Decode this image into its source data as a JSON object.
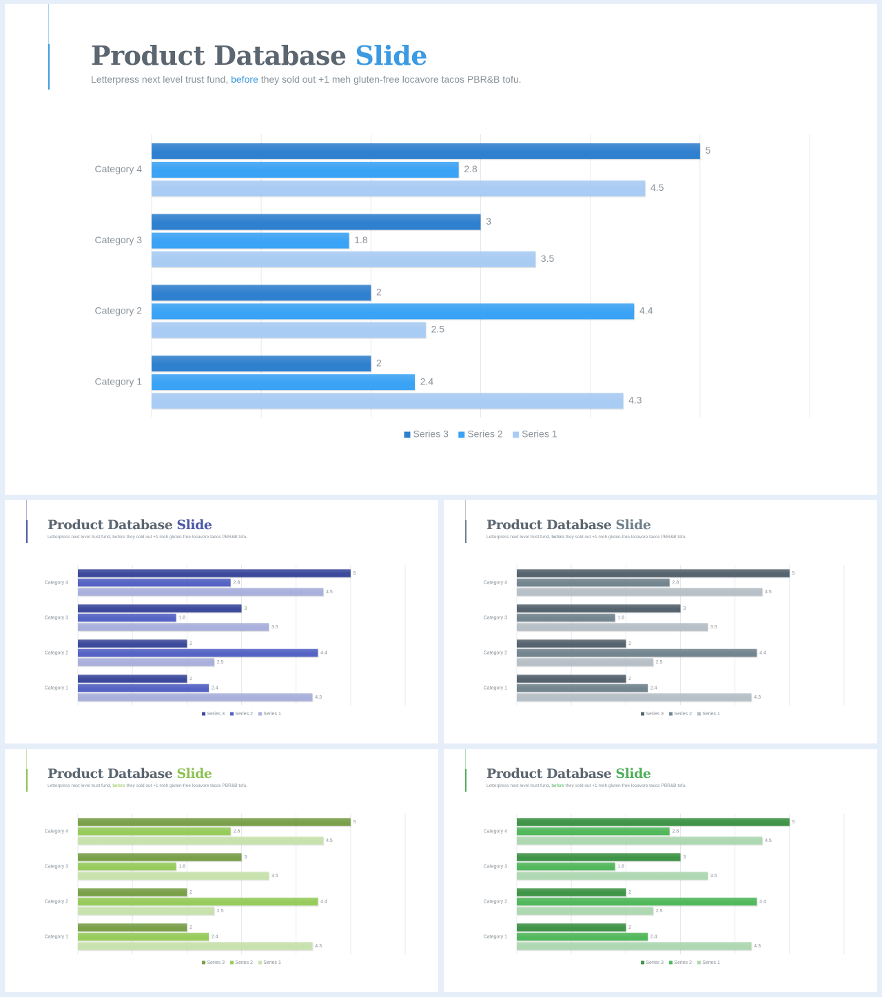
{
  "chart_data": [
    {
      "type": "bar",
      "orientation": "horizontal",
      "title": "Product Database",
      "title_accent": "Slide",
      "subtitle_pre": "Letterpress next level trust fund, ",
      "subtitle_link": "before",
      "subtitle_post": " they sold out +1 meh gluten-free locavore tacos PBR&B tofu.",
      "categories": [
        "Category 4",
        "Category 3",
        "Category 2",
        "Category 1"
      ],
      "series": [
        {
          "name": "Series 3",
          "values": [
            5,
            3,
            2,
            2
          ],
          "color": "#2f80cf"
        },
        {
          "name": "Series 2",
          "values": [
            2.8,
            1.8,
            4.4,
            2.4
          ],
          "color": "#3aa3f5"
        },
        {
          "name": "Series 1",
          "values": [
            4.5,
            3.5,
            2.5,
            4.3
          ],
          "color": "#a9ccf4"
        }
      ],
      "xlim": [
        0,
        6
      ],
      "grid": true,
      "legend": "bottom",
      "accent_color": "#3b9ae1"
    },
    {
      "type": "bar",
      "orientation": "horizontal",
      "title": "Product Database",
      "title_accent": "Slide",
      "subtitle_pre": "Letterpress next level trust fund, before they sold out +1 meh gluten-free locavore tacos PBR&B tofu.",
      "subtitle_link": "",
      "subtitle_post": "",
      "categories": [
        "Category 4",
        "Category 3",
        "Category 2",
        "Category 1"
      ],
      "series": [
        {
          "name": "Series 3",
          "values": [
            5,
            3,
            2,
            2
          ],
          "color": "#3d4a9c"
        },
        {
          "name": "Series 2",
          "values": [
            2.8,
            1.8,
            4.4,
            2.4
          ],
          "color": "#5563c4"
        },
        {
          "name": "Series 1",
          "values": [
            4.5,
            3.5,
            2.5,
            4.3
          ],
          "color": "#a9b0dc"
        }
      ],
      "xlim": [
        0,
        6
      ],
      "grid": true,
      "legend": "bottom",
      "accent_color": "#4a57a8"
    },
    {
      "type": "bar",
      "orientation": "horizontal",
      "title": "Product Database",
      "title_accent": "Slide",
      "subtitle_pre": "Letterpress next level trust fund, ",
      "subtitle_link": "before",
      "subtitle_post": " they sold out +1 meh gluten-free locavore tacos PBR&B tofu.",
      "categories": [
        "Category 4",
        "Category 3",
        "Category 2",
        "Category 1"
      ],
      "series": [
        {
          "name": "Series 3",
          "values": [
            5,
            3,
            2,
            2
          ],
          "color": "#56646f"
        },
        {
          "name": "Series 2",
          "values": [
            2.8,
            1.8,
            4.4,
            2.4
          ],
          "color": "#73858f"
        },
        {
          "name": "Series 1",
          "values": [
            4.5,
            3.5,
            2.5,
            4.3
          ],
          "color": "#b7c0c6"
        }
      ],
      "xlim": [
        0,
        6
      ],
      "grid": true,
      "legend": "bottom",
      "accent_color": "#6d7f8a"
    },
    {
      "type": "bar",
      "orientation": "horizontal",
      "title": "Product Database",
      "title_accent": "Slide",
      "subtitle_pre": "Letterpress next level trust fund, ",
      "subtitle_link": "before",
      "subtitle_post": " they sold out +1 meh gluten-free locavore tacos PBR&B tofu.",
      "categories": [
        "Category 4",
        "Category 3",
        "Category 2",
        "Category 1"
      ],
      "series": [
        {
          "name": "Series 3",
          "values": [
            5,
            3,
            2,
            2
          ],
          "color": "#7aa04a"
        },
        {
          "name": "Series 2",
          "values": [
            2.8,
            1.8,
            4.4,
            2.4
          ],
          "color": "#97cc5c"
        },
        {
          "name": "Series 1",
          "values": [
            4.5,
            3.5,
            2.5,
            4.3
          ],
          "color": "#c8e2ad"
        }
      ],
      "xlim": [
        0,
        6
      ],
      "grid": true,
      "legend": "bottom",
      "accent_color": "#8cc152"
    },
    {
      "type": "bar",
      "orientation": "horizontal",
      "title": "Product Database",
      "title_accent": "Slide",
      "subtitle_pre": "Letterpress next level trust fund, ",
      "subtitle_link": "before",
      "subtitle_post": " they sold out +1 meh gluten-free locavore tacos PBR&B tofu.",
      "categories": [
        "Category 4",
        "Category 3",
        "Category 2",
        "Category 1"
      ],
      "series": [
        {
          "name": "Series 3",
          "values": [
            5,
            3,
            2,
            2
          ],
          "color": "#3f9447"
        },
        {
          "name": "Series 2",
          "values": [
            2.8,
            1.8,
            4.4,
            2.4
          ],
          "color": "#52b85c"
        },
        {
          "name": "Series 1",
          "values": [
            4.5,
            3.5,
            2.5,
            4.3
          ],
          "color": "#aed8b1"
        }
      ],
      "xlim": [
        0,
        6
      ],
      "grid": true,
      "legend": "bottom",
      "accent_color": "#4fae5a"
    }
  ]
}
